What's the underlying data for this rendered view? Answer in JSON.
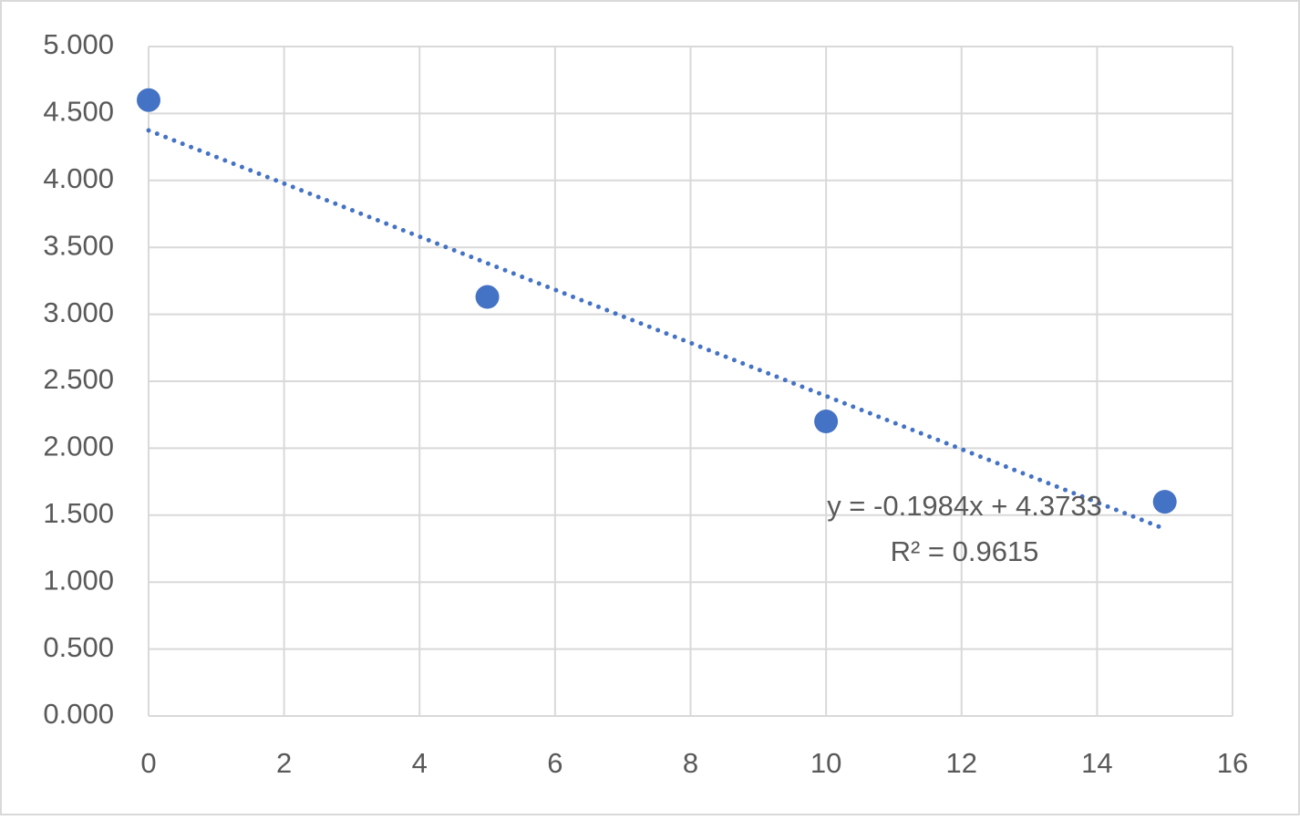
{
  "chart_data": {
    "type": "scatter",
    "x": [
      0,
      5,
      10,
      15
    ],
    "series": [
      {
        "color": "#4472c4",
        "values": [
          4.6,
          3.13,
          2.2,
          1.6
        ]
      }
    ],
    "xlim": [
      0,
      16
    ],
    "xticks": [
      0,
      2,
      4,
      6,
      8,
      10,
      12,
      14,
      16
    ],
    "ylim": [
      0,
      5
    ],
    "yticks": [
      {
        "value": 0,
        "label": "0.000"
      },
      {
        "value": 0.5,
        "label": "0.500"
      },
      {
        "value": 1,
        "label": "1.000"
      },
      {
        "value": 1.5,
        "label": "1.500"
      },
      {
        "value": 2,
        "label": "2.000"
      },
      {
        "value": 2.5,
        "label": "2.500"
      },
      {
        "value": 3,
        "label": "3.000"
      },
      {
        "value": 3.5,
        "label": "3.500"
      },
      {
        "value": 4,
        "label": "4.000"
      },
      {
        "value": 4.5,
        "label": "4.500"
      },
      {
        "value": 5,
        "label": "5.000"
      }
    ],
    "grid": true,
    "trendline": {
      "slope": -0.1984,
      "intercept": 4.3733,
      "equation": "y = -0.1984x + 4.3733",
      "r_squared_label": "R² = 0.9615"
    }
  }
}
